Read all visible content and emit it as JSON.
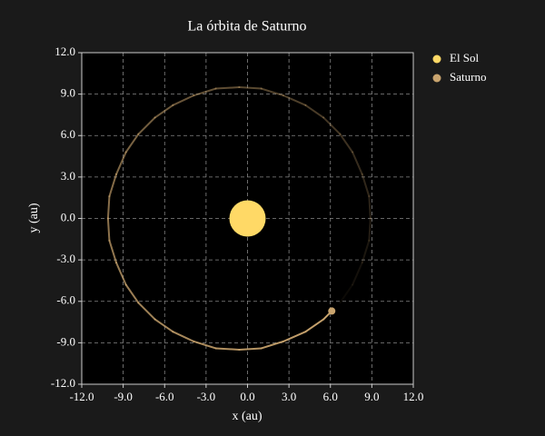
{
  "chart_data": {
    "type": "scatter",
    "title": "La órbita de Saturno",
    "xlabel": "x (au)",
    "ylabel": "y (au)",
    "xlim": [
      -12,
      12
    ],
    "ylim": [
      -12,
      12
    ],
    "xticks": [
      {
        "value": -12,
        "label": "-12.0"
      },
      {
        "value": -9,
        "label": "-9.0"
      },
      {
        "value": -6,
        "label": "-6.0"
      },
      {
        "value": -3,
        "label": "-3.0"
      },
      {
        "value": 0,
        "label": "0.0"
      },
      {
        "value": 3,
        "label": "3.0"
      },
      {
        "value": 6,
        "label": "6.0"
      },
      {
        "value": 9,
        "label": "9.0"
      },
      {
        "value": 12,
        "label": "12.0"
      }
    ],
    "yticks": [
      {
        "value": -12,
        "label": "-12.0"
      },
      {
        "value": -9,
        "label": "-9.0"
      },
      {
        "value": -6,
        "label": "-6.0"
      },
      {
        "value": -3,
        "label": "-3.0"
      },
      {
        "value": 0,
        "label": "0.0"
      },
      {
        "value": 3,
        "label": "3.0"
      },
      {
        "value": 6,
        "label": "6.0"
      },
      {
        "value": 9,
        "label": "9.0"
      },
      {
        "value": 12,
        "label": "12.0"
      }
    ],
    "grid": true,
    "legend": "outside-right",
    "series": [
      {
        "name": "El Sol",
        "color": "#ffd966",
        "marker_size": 20,
        "x": [
          0
        ],
        "y": [
          0
        ]
      },
      {
        "name": "Saturno",
        "color": "#c9a46e",
        "marker_size": 4,
        "x": [
          6.1
        ],
        "y": [
          -6.7
        ]
      }
    ],
    "trail": {
      "color": "#c9a46e",
      "x": [
        6.7,
        7.6,
        8.3,
        8.8,
        8.9,
        8.8,
        8.3,
        7.6,
        6.7,
        5.5,
        4.2,
        2.6,
        1.0,
        -0.6,
        -2.3,
        -3.9,
        -5.4,
        -6.7,
        -7.9,
        -8.8,
        -9.5,
        -10.0,
        -10.1,
        -10.0,
        -9.5,
        -8.8,
        -7.9,
        -6.7,
        -5.4,
        -3.9,
        -2.3,
        -0.6,
        1.0,
        2.6,
        4.2,
        5.5,
        6.1
      ],
      "y": [
        -6.1,
        -4.8,
        -3.2,
        -1.6,
        0,
        1.6,
        3.2,
        4.8,
        6.1,
        7.3,
        8.2,
        8.9,
        9.4,
        9.5,
        9.4,
        8.9,
        8.2,
        7.3,
        6.1,
        4.8,
        3.2,
        1.6,
        0,
        -1.6,
        -3.2,
        -4.8,
        -6.1,
        -7.3,
        -8.2,
        -8.9,
        -9.4,
        -9.5,
        -9.4,
        -8.9,
        -8.2,
        -7.3,
        -6.7
      ]
    }
  }
}
